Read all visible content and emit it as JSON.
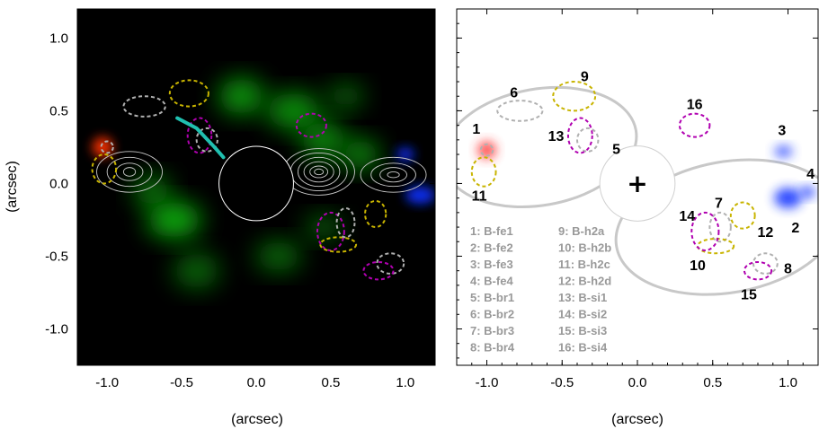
{
  "chart_data": [
    {
      "type": "heatmap",
      "panel": "left",
      "xlabel": "(arcsec)",
      "ylabel": "(arcsec)",
      "xlim": [
        -1.2,
        1.2
      ],
      "ylim": [
        -1.25,
        1.2
      ],
      "xticks": [
        -1.0,
        -0.5,
        0.0,
        0.5,
        1.0
      ],
      "xtick_labels": [
        "-1.0",
        "-0.5",
        "0.0",
        "0.5",
        "1.0"
      ],
      "yticks": [
        1.0,
        0.5,
        0.0,
        -0.5,
        -1.0
      ],
      "ytick_labels": [
        "1.0",
        "0.5",
        "0.0",
        "-0.5",
        "-1.0"
      ],
      "background": "#000000",
      "colors": {
        "fe": "#ff3000",
        "h2": "#10c010",
        "br": "#1030ff",
        "contour": "#c8c8c8",
        "line": "#20c0b0"
      },
      "occulting_disk": {
        "center": [
          0.0,
          0.0
        ],
        "radius": 0.25
      },
      "emission": {
        "h2": [
          {
            "x": -0.55,
            "y": -0.25,
            "sx": 0.18,
            "sy": 0.12,
            "a": 0.95
          },
          {
            "x": -0.7,
            "y": -0.05,
            "sx": 0.12,
            "sy": 0.1,
            "a": 0.7
          },
          {
            "x": -0.1,
            "y": 0.6,
            "sx": 0.15,
            "sy": 0.12,
            "a": 0.85
          },
          {
            "x": 0.25,
            "y": 0.5,
            "sx": 0.18,
            "sy": 0.12,
            "a": 0.8
          },
          {
            "x": 0.45,
            "y": 0.3,
            "sx": 0.15,
            "sy": 0.12,
            "a": 0.75
          },
          {
            "x": 0.6,
            "y": 0.6,
            "sx": 0.12,
            "sy": 0.08,
            "a": 0.6
          },
          {
            "x": 0.7,
            "y": 0.2,
            "sx": 0.12,
            "sy": 0.1,
            "a": 0.8
          },
          {
            "x": -0.4,
            "y": -0.6,
            "sx": 0.15,
            "sy": 0.12,
            "a": 0.55
          },
          {
            "x": 0.15,
            "y": -0.5,
            "sx": 0.15,
            "sy": 0.1,
            "a": 0.6
          },
          {
            "x": 0.45,
            "y": -0.3,
            "sx": 0.12,
            "sy": 0.08,
            "a": 0.55
          }
        ],
        "fe": [
          {
            "x": -1.03,
            "y": 0.25,
            "sx": 0.07,
            "sy": 0.07,
            "a": 0.95
          }
        ],
        "br": [
          {
            "x": 1.0,
            "y": 0.2,
            "sx": 0.06,
            "sy": 0.05,
            "a": 0.85
          },
          {
            "x": 1.1,
            "y": -0.08,
            "sx": 0.1,
            "sy": 0.06,
            "a": 0.95
          }
        ]
      },
      "contour_centers": [
        {
          "x": -0.85,
          "y": 0.08,
          "rx": [
            0.04,
            0.09,
            0.15,
            0.22
          ],
          "ry": [
            0.03,
            0.06,
            0.1,
            0.14
          ]
        },
        {
          "x": 0.42,
          "y": 0.08,
          "rx": [
            0.03,
            0.06,
            0.1,
            0.14,
            0.19,
            0.24
          ],
          "ry": [
            0.02,
            0.04,
            0.07,
            0.1,
            0.13,
            0.16
          ]
        },
        {
          "x": 0.92,
          "y": 0.06,
          "rx": [
            0.04,
            0.09,
            0.15,
            0.22
          ],
          "ry": [
            0.02,
            0.05,
            0.08,
            0.12
          ]
        }
      ],
      "region_outlines": [
        {
          "id": 1,
          "x": -1.0,
          "y": 0.25,
          "rx": 0.04,
          "ry": 0.04,
          "color": "gray",
          "style": "dashed"
        },
        {
          "id": 6,
          "x": -0.75,
          "y": 0.53,
          "rx": 0.14,
          "ry": 0.07,
          "color": "gray",
          "style": "dashed"
        },
        {
          "id": 9,
          "x": -0.45,
          "y": 0.62,
          "rx": 0.13,
          "ry": 0.09,
          "color": "yellow",
          "style": "dashed"
        },
        {
          "id": 13,
          "x": -0.38,
          "y": 0.33,
          "rx": 0.08,
          "ry": 0.12,
          "color": "magenta",
          "style": "dashed"
        },
        {
          "id": 5,
          "x": -0.33,
          "y": 0.3,
          "rx": 0.07,
          "ry": 0.08,
          "color": "gray",
          "style": "dashed"
        },
        {
          "id": 11,
          "x": -1.02,
          "y": 0.1,
          "rx": 0.08,
          "ry": 0.1,
          "color": "yellow",
          "style": "dashed"
        },
        {
          "id": 16,
          "x": 0.37,
          "y": 0.4,
          "rx": 0.1,
          "ry": 0.08,
          "color": "magenta",
          "style": "dashed"
        },
        {
          "id": 14,
          "x": 0.5,
          "y": -0.33,
          "rx": 0.09,
          "ry": 0.13,
          "color": "magenta",
          "style": "dashed"
        },
        {
          "id": 10,
          "x": 0.55,
          "y": -0.42,
          "rx": 0.12,
          "ry": 0.05,
          "color": "yellow",
          "style": "dashed"
        },
        {
          "id": 7,
          "x": 0.6,
          "y": -0.27,
          "rx": 0.06,
          "ry": 0.1,
          "color": "gray",
          "style": "dashed"
        },
        {
          "id": 12,
          "x": 0.8,
          "y": -0.21,
          "rx": 0.07,
          "ry": 0.09,
          "color": "yellow",
          "style": "dashed"
        },
        {
          "id": 8,
          "x": 0.9,
          "y": -0.55,
          "rx": 0.09,
          "ry": 0.07,
          "color": "gray",
          "style": "dashed"
        },
        {
          "id": 15,
          "x": 0.82,
          "y": -0.6,
          "rx": 0.1,
          "ry": 0.06,
          "color": "magenta",
          "style": "dashed"
        }
      ],
      "jet_arc": {
        "points": [
          [
            -0.53,
            0.45
          ],
          [
            -0.4,
            0.38
          ],
          [
            -0.28,
            0.25
          ],
          [
            -0.22,
            0.18
          ]
        ]
      }
    },
    {
      "type": "scatter",
      "panel": "right",
      "xlabel": "(arcsec)",
      "xlim": [
        -1.2,
        1.2
      ],
      "ylim": [
        -1.25,
        1.2
      ],
      "xticks": [
        -1.0,
        -0.5,
        0.0,
        0.5,
        1.0
      ],
      "xtick_labels": [
        "-1.0",
        "-0.5",
        "0.0",
        "0.5",
        "1.0"
      ],
      "yticks": [
        1.0,
        0.5,
        0.0,
        -0.5,
        -1.0
      ],
      "background": "#ffffff",
      "center_marker": "+",
      "occulting_disk": {
        "center": [
          0.0,
          0.0
        ],
        "radius": 0.25
      },
      "emission": {
        "fe": [
          {
            "x": -1.0,
            "y": 0.23,
            "sx": 0.06,
            "sy": 0.06,
            "a": 0.9
          }
        ],
        "br": [
          {
            "x": 0.97,
            "y": 0.22,
            "sx": 0.06,
            "sy": 0.04,
            "a": 0.8
          },
          {
            "x": 1.0,
            "y": -0.1,
            "sx": 0.09,
            "sy": 0.07,
            "a": 0.95
          },
          {
            "x": 1.13,
            "y": -0.06,
            "sx": 0.05,
            "sy": 0.04,
            "a": 0.9
          }
        ]
      },
      "lobes": [
        {
          "cx": -0.65,
          "cy": 0.25,
          "rx": 0.65,
          "ry": 0.4,
          "rot": -10
        },
        {
          "cx": 0.6,
          "cy": -0.3,
          "rx": 0.75,
          "ry": 0.45,
          "rot": -10
        }
      ],
      "regions": [
        {
          "id": "1",
          "name": "B-fe1",
          "x": -1.0,
          "y": 0.23,
          "rx": 0.04,
          "ry": 0.04,
          "color": "gray",
          "label_x": -1.07,
          "label_y": 0.38
        },
        {
          "id": "2",
          "name": "B-fe2",
          "x": 1.0,
          "y": -0.1,
          "rx": 0.0,
          "ry": 0.0,
          "color": "none",
          "label_x": 1.05,
          "label_y": -0.3
        },
        {
          "id": "3",
          "name": "B-fe3",
          "x": 0.97,
          "y": 0.22,
          "rx": 0.0,
          "ry": 0.0,
          "color": "none",
          "label_x": 0.96,
          "label_y": 0.37
        },
        {
          "id": "4",
          "name": "B-fe4",
          "x": 1.13,
          "y": -0.06,
          "rx": 0.0,
          "ry": 0.0,
          "color": "none",
          "label_x": 1.15,
          "label_y": 0.07
        },
        {
          "id": "5",
          "name": "B-br1",
          "x": -0.33,
          "y": 0.3,
          "rx": 0.07,
          "ry": 0.08,
          "color": "gray",
          "label_x": -0.14,
          "label_y": 0.24
        },
        {
          "id": "6",
          "name": "B-br2",
          "x": -0.78,
          "y": 0.5,
          "rx": 0.15,
          "ry": 0.07,
          "color": "gray",
          "label_x": -0.82,
          "label_y": 0.63
        },
        {
          "id": "7",
          "name": "B-br3",
          "x": 0.55,
          "y": -0.3,
          "rx": 0.07,
          "ry": 0.1,
          "color": "gray",
          "label_x": 0.54,
          "label_y": -0.13
        },
        {
          "id": "8",
          "name": "B-br4",
          "x": 0.85,
          "y": -0.55,
          "rx": 0.08,
          "ry": 0.07,
          "color": "gray",
          "label_x": 1.0,
          "label_y": -0.58
        },
        {
          "id": "9",
          "name": "B-h2a",
          "x": -0.42,
          "y": 0.6,
          "rx": 0.14,
          "ry": 0.1,
          "color": "yellow",
          "label_x": -0.35,
          "label_y": 0.74
        },
        {
          "id": "10",
          "name": "B-h2b",
          "x": 0.52,
          "y": -0.43,
          "rx": 0.12,
          "ry": 0.05,
          "color": "yellow",
          "label_x": 0.4,
          "label_y": -0.56
        },
        {
          "id": "11",
          "name": "B-h2c",
          "x": -1.02,
          "y": 0.08,
          "rx": 0.08,
          "ry": 0.1,
          "color": "yellow",
          "label_x": -1.05,
          "label_y": -0.08
        },
        {
          "id": "12",
          "name": "B-h2d",
          "x": 0.7,
          "y": -0.22,
          "rx": 0.08,
          "ry": 0.09,
          "color": "yellow",
          "label_x": 0.85,
          "label_y": -0.33
        },
        {
          "id": "13",
          "name": "B-si1",
          "x": -0.38,
          "y": 0.33,
          "rx": 0.08,
          "ry": 0.12,
          "color": "magenta",
          "label_x": -0.54,
          "label_y": 0.33
        },
        {
          "id": "14",
          "name": "B-si2",
          "x": 0.45,
          "y": -0.33,
          "rx": 0.09,
          "ry": 0.13,
          "color": "magenta",
          "label_x": 0.33,
          "label_y": -0.22
        },
        {
          "id": "15",
          "name": "B-si3",
          "x": 0.8,
          "y": -0.6,
          "rx": 0.09,
          "ry": 0.06,
          "color": "magenta",
          "label_x": 0.74,
          "label_y": -0.76
        },
        {
          "id": "16",
          "name": "B-si4",
          "x": 0.38,
          "y": 0.4,
          "rx": 0.1,
          "ry": 0.08,
          "color": "magenta",
          "label_x": 0.38,
          "label_y": 0.55
        }
      ],
      "key": [
        "1: B-fe1",
        "2: B-fe2",
        "3: B-fe3",
        "4: B-fe4",
        "5: B-br1",
        "6: B-br2",
        "7: B-br3",
        "8: B-br4",
        "9:   B-h2a",
        "10: B-h2b",
        "11: B-h2c",
        "12: B-h2d",
        "13: B-si1",
        "14: B-si2",
        "15: B-si3",
        "16: B-si4"
      ]
    }
  ],
  "outline_colors": {
    "gray": "#b0b0b0",
    "yellow": "#c8b400",
    "magenta": "#b000b0",
    "lobe": "#c8c8c8",
    "key": "#999999"
  }
}
